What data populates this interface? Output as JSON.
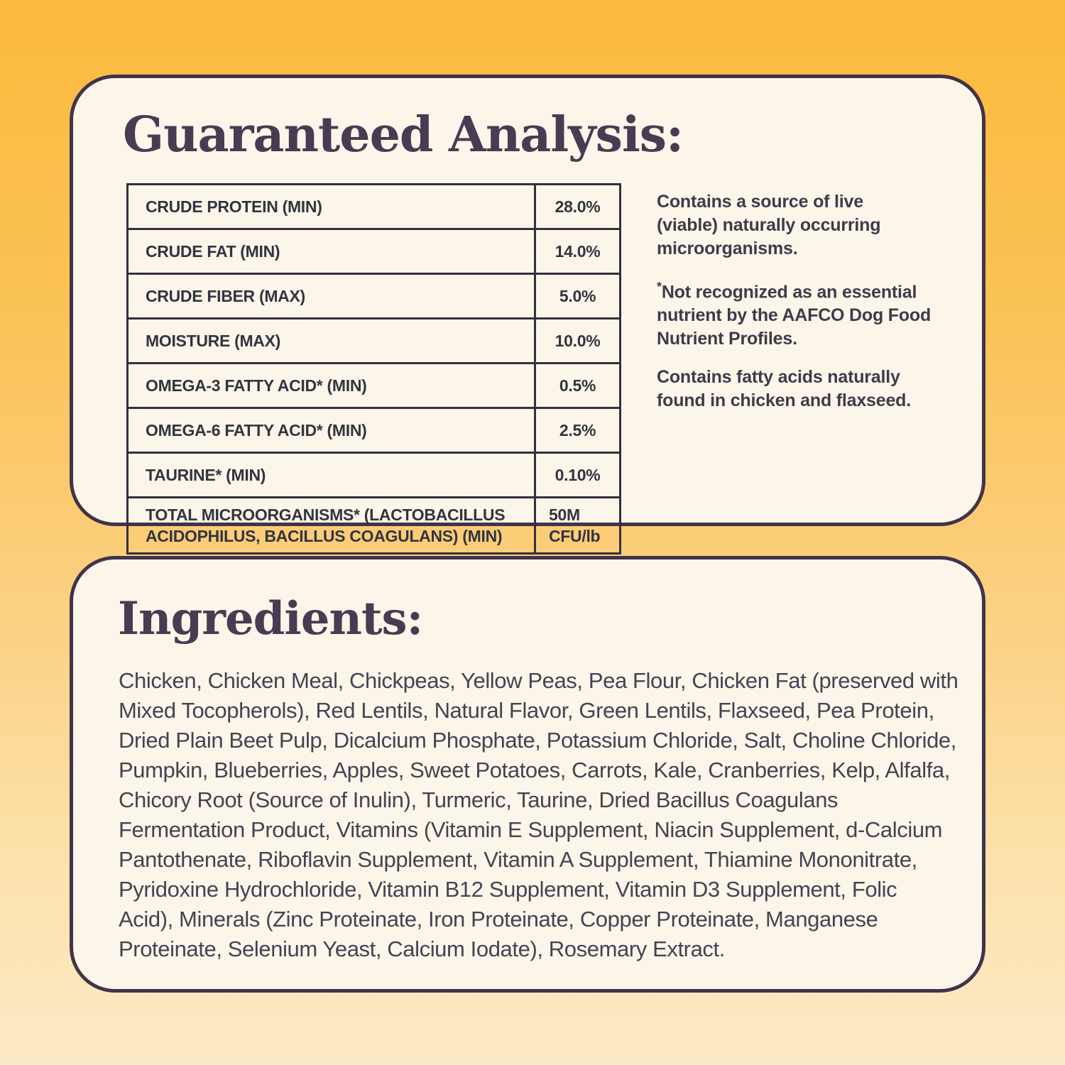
{
  "colors": {
    "background_top": "#fbba3e",
    "background_bottom": "#fceac7",
    "panel_background": "#fbf6e9",
    "panel_border": "#413349",
    "title_text": "#4a3a52",
    "table_lines": "#34303f",
    "body_text": "#3f3b4b"
  },
  "guaranteed_analysis": {
    "title": "Guaranteed Analysis:",
    "table": {
      "rows": [
        {
          "label": "CRUDE PROTEIN (MIN)",
          "value": "28.0%"
        },
        {
          "label": "CRUDE FAT (MIN)",
          "value": "14.0%"
        },
        {
          "label": "CRUDE FIBER (MAX)",
          "value": "5.0%"
        },
        {
          "label": "MOISTURE (MAX)",
          "value": "10.0%"
        },
        {
          "label": "OMEGA-3 FATTY ACID* (MIN)",
          "value": "0.5%"
        },
        {
          "label": "OMEGA-6 FATTY ACID* (MIN)",
          "value": "2.5%"
        },
        {
          "label": "TAURINE* (MIN)",
          "value": "0.10%"
        },
        {
          "label": "TOTAL MICROORGANISMS* (LACTOBACILLUS\nACIDOPHILUS, BACILLUS COAGULANS) (MIN)",
          "value": "50M\nCFU/lb"
        }
      ]
    },
    "notes": [
      "Contains a source of live\n(viable) naturally occurring\nmicroorganisms.",
      "*Not recognized as an essential\nnutrient by the AAFCO Dog Food\nNutrient Profiles.",
      "Contains fatty acids naturally\nfound in chicken and flaxseed."
    ]
  },
  "ingredients": {
    "title": "Ingredients:",
    "text": "Chicken, Chicken Meal, Chickpeas, Yellow Peas, Pea Flour, Chicken Fat (preserved with\nMixed Tocopherols), Red Lentils, Natural Flavor, Green Lentils, Flaxseed, Pea Protein,\nDried Plain Beet Pulp, Dicalcium Phosphate, Potassium Chloride, Salt, Choline Chloride,\nPumpkin, Blueberries, Apples, Sweet Potatoes, Carrots, Kale, Cranberries, Kelp, Alfalfa,\nChicory Root (Source of Inulin), Turmeric, Taurine, Dried Bacillus Coagulans\nFermentation Product, Vitamins (Vitamin E Supplement, Niacin Supplement, d-Calcium\nPantothenate, Riboflavin Supplement, Vitamin A Supplement, Thiamine Mononitrate,\nPyridoxine Hydrochloride, Vitamin B12 Supplement, Vitamin D3 Supplement, Folic\nAcid), Minerals (Zinc Proteinate, Iron Proteinate, Copper Proteinate, Manganese\nProteinate, Selenium Yeast, Calcium Iodate), Rosemary Extract."
  }
}
